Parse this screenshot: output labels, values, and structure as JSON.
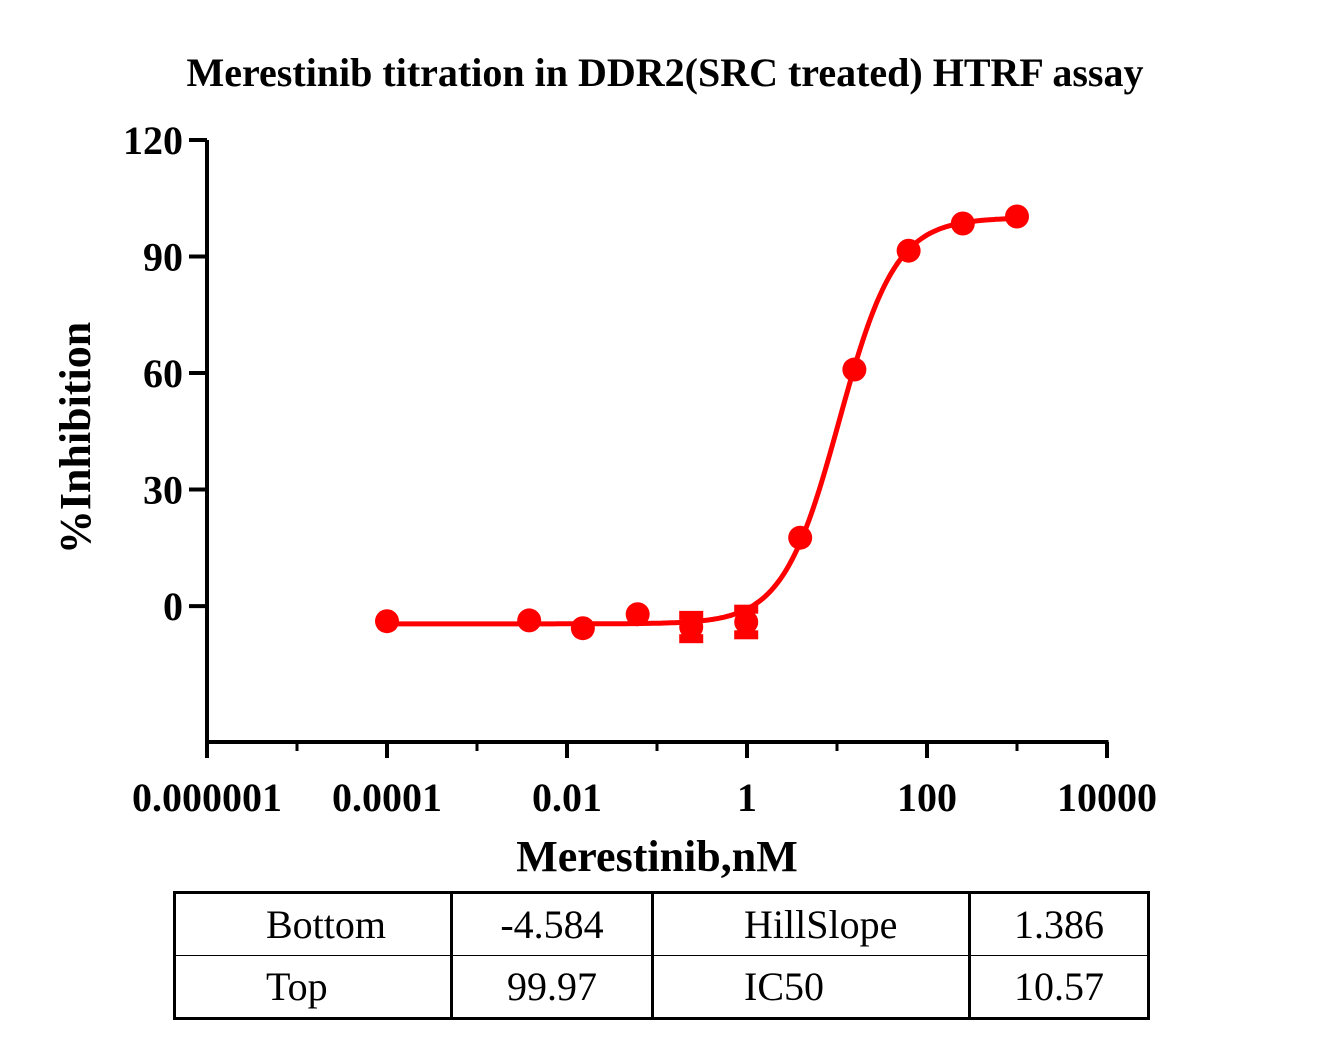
{
  "chart_data": {
    "type": "scatter",
    "title": "Merestinib titration in DDR2(SRC treated) HTRF assay",
    "xlabel": "Merestinib,nM",
    "ylabel": "%Inhibition",
    "xscale": "log",
    "xlim": [
      1e-06,
      10000
    ],
    "ylim": [
      -35,
      120
    ],
    "xticks": [
      "0.000001",
      "0.0001",
      "0.01",
      "1",
      "100",
      "10000"
    ],
    "xtick_values": [
      1e-06,
      0.0001,
      0.01,
      1,
      100,
      10000
    ],
    "yticks": [
      "0",
      "30",
      "60",
      "90",
      "120"
    ],
    "ytick_values": [
      0,
      30,
      60,
      90,
      120
    ],
    "grid": false,
    "color": "#ff0000",
    "points": [
      {
        "x": 0.0001,
        "y": -3.9
      },
      {
        "x": 0.0038,
        "y": -3.7
      },
      {
        "x": 0.015,
        "y": -5.7
      },
      {
        "x": 0.061,
        "y": -2.1
      },
      {
        "x": 0.24,
        "y": -5.4,
        "err": 3.9
      },
      {
        "x": 0.98,
        "y": -4.1,
        "err": 4.2
      },
      {
        "x": 3.9,
        "y": 17.6
      },
      {
        "x": 15.6,
        "y": 60.9
      },
      {
        "x": 62.5,
        "y": 91.5
      },
      {
        "x": 250,
        "y": 98.5
      },
      {
        "x": 1000,
        "y": 100.3
      }
    ],
    "fit": {
      "model": "4PL",
      "bottom": -4.584,
      "top": 99.97,
      "ic50": 10.57,
      "hillslope": 1.386
    }
  },
  "table": {
    "rows": [
      [
        "Bottom",
        "-4.584",
        "HillSlope",
        "1.386"
      ],
      [
        "Top",
        "99.97",
        "IC50",
        "10.57"
      ]
    ]
  }
}
